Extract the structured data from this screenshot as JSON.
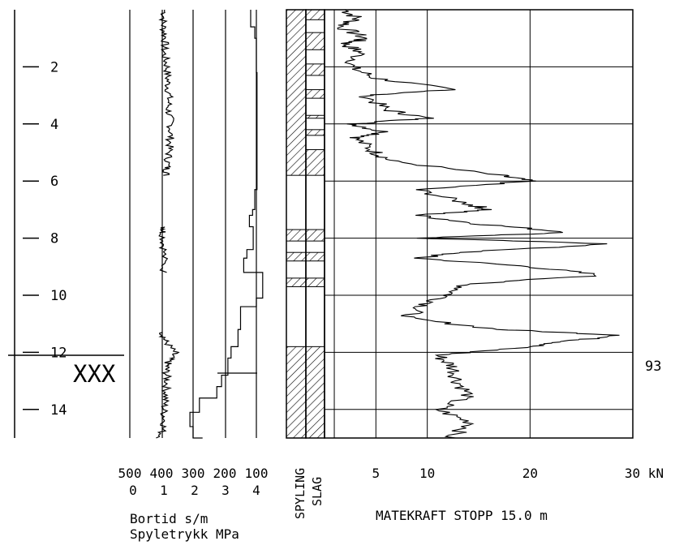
{
  "chart_data": {
    "type": "line",
    "depth_axis": {
      "ticks": [
        2,
        4,
        6,
        8,
        10,
        12,
        14
      ],
      "range": [
        0,
        15
      ],
      "marker_label": "XXX",
      "marker_depth": 11.5,
      "right_value": "93"
    },
    "bortid_axis": {
      "ticks": [
        "500",
        "400",
        "300",
        "200",
        "100"
      ],
      "values": [
        500,
        400,
        300,
        200,
        100
      ],
      "line1": "Bortid s/m"
    },
    "spyletrykk_axis": {
      "ticks": [
        "0",
        "1",
        "2",
        "3",
        "4"
      ],
      "values": [
        0,
        1,
        2,
        3,
        4
      ],
      "line2": "Spyletrykk MPa"
    },
    "mode_labels": [
      "SPYLING",
      "SLAG"
    ],
    "force_axis": {
      "ticks": [
        "5",
        "10",
        "20",
        "30 kN"
      ],
      "values": [
        5,
        10,
        20,
        30
      ],
      "range": [
        0,
        30
      ],
      "label": "MATEKRAFT  STOPP 15.0 m"
    },
    "series": {
      "bortid_trace": [
        [
          0.0,
          390
        ],
        [
          0.5,
          395
        ],
        [
          1.0,
          388
        ],
        [
          1.5,
          392
        ],
        [
          2.0,
          382
        ],
        [
          2.5,
          380
        ],
        [
          3.0,
          376
        ],
        [
          3.5,
          378
        ],
        [
          4.0,
          370
        ],
        [
          4.5,
          372
        ],
        [
          5.0,
          376
        ],
        [
          5.5,
          382
        ],
        [
          5.8,
          385
        ],
        [
          7.6,
          390
        ],
        [
          7.8,
          395
        ],
        [
          8.4,
          392
        ],
        [
          9.2,
          393
        ],
        [
          11.3,
          396
        ],
        [
          11.6,
          388
        ],
        [
          12.0,
          358
        ],
        [
          12.3,
          378
        ],
        [
          12.6,
          385
        ],
        [
          13.0,
          382
        ],
        [
          13.5,
          386
        ],
        [
          14.0,
          392
        ],
        [
          14.5,
          390
        ],
        [
          15.0,
          405
        ]
      ],
      "spyletrykk_profile": [
        [
          0.0,
          118
        ],
        [
          0.6,
          105
        ],
        [
          1.0,
          100
        ],
        [
          1.5,
          100
        ],
        [
          2.2,
          98
        ],
        [
          4.2,
          98
        ],
        [
          6.3,
          105
        ],
        [
          7.0,
          112
        ],
        [
          7.2,
          122
        ],
        [
          7.6,
          110
        ],
        [
          8.4,
          130
        ],
        [
          8.7,
          140
        ],
        [
          9.2,
          80
        ],
        [
          10.1,
          100
        ],
        [
          10.4,
          150
        ],
        [
          11.2,
          158
        ],
        [
          11.8,
          180
        ],
        [
          12.2,
          190
        ],
        [
          12.8,
          210
        ],
        [
          13.2,
          225
        ],
        [
          13.6,
          280
        ],
        [
          14.1,
          310
        ],
        [
          14.6,
          300
        ],
        [
          15.0,
          270
        ]
      ],
      "spyling_segments": [
        [
          0.0,
          5.8
        ],
        [
          7.7,
          8.1
        ],
        [
          8.5,
          8.8
        ],
        [
          9.4,
          9.7
        ],
        [
          11.8,
          15.0
        ]
      ],
      "slag_segments": [
        [
          0.0,
          0.35
        ],
        [
          0.8,
          1.4
        ],
        [
          1.9,
          2.3
        ],
        [
          2.8,
          3.1
        ],
        [
          3.7,
          3.8
        ],
        [
          4.2,
          4.4
        ],
        [
          4.9,
          5.8
        ],
        [
          7.7,
          8.1
        ],
        [
          8.5,
          8.8
        ],
        [
          9.4,
          9.7
        ],
        [
          11.8,
          15.0
        ]
      ],
      "matekraft": [
        [
          0.0,
          2
        ],
        [
          0.3,
          3.2
        ],
        [
          0.6,
          1.6
        ],
        [
          1.0,
          4
        ],
        [
          1.2,
          2
        ],
        [
          1.5,
          3.5
        ],
        [
          2.0,
          2.5
        ],
        [
          2.4,
          5
        ],
        [
          2.8,
          12.5
        ],
        [
          3.0,
          4
        ],
        [
          3.5,
          6
        ],
        [
          3.8,
          10
        ],
        [
          4.0,
          2.8
        ],
        [
          4.3,
          6
        ],
        [
          4.5,
          3
        ],
        [
          5.0,
          5
        ],
        [
          5.3,
          6.5
        ],
        [
          5.8,
          17
        ],
        [
          6.0,
          20
        ],
        [
          6.3,
          9
        ],
        [
          6.8,
          14
        ],
        [
          7.0,
          16
        ],
        [
          7.2,
          9
        ],
        [
          7.5,
          15
        ],
        [
          7.8,
          24
        ],
        [
          8.0,
          9
        ],
        [
          8.2,
          28
        ],
        [
          8.5,
          13
        ],
        [
          8.7,
          9
        ],
        [
          9.0,
          20
        ],
        [
          9.3,
          27
        ],
        [
          9.6,
          14
        ],
        [
          10.0,
          12
        ],
        [
          10.4,
          9.5
        ],
        [
          10.8,
          8
        ],
        [
          11.2,
          17
        ],
        [
          11.4,
          29
        ],
        [
          11.6,
          24
        ],
        [
          11.8,
          20
        ],
        [
          12.1,
          11
        ],
        [
          12.5,
          12.5
        ],
        [
          13.0,
          13
        ],
        [
          13.5,
          14
        ],
        [
          14.0,
          11
        ],
        [
          14.5,
          14.5
        ],
        [
          15.0,
          12
        ]
      ]
    }
  }
}
